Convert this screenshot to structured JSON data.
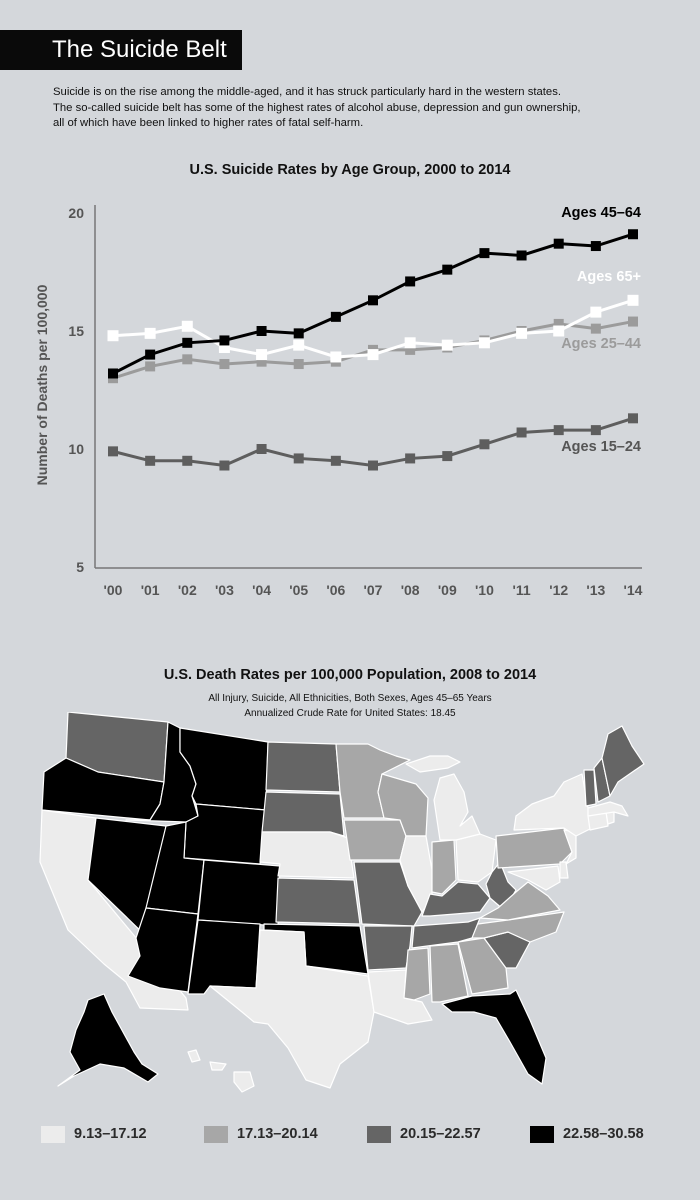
{
  "header": {
    "title": "The Suicide Belt",
    "intro_lines": [
      "Suicide is on the rise among the middle-aged, and it has struck particularly hard in the western states.",
      "The so-called suicide belt has some of the highest rates of alcohol abuse, depression and gun ownership,",
      "all of which have been linked to higher rates of fatal self-harm."
    ]
  },
  "chart_data": [
    {
      "type": "line",
      "title": "U.S. Suicide Rates by Age Group, 2000 to 2014",
      "ylabel": "Number of Deaths per 100,000",
      "xlabel": "",
      "x": [
        "'00",
        "'01",
        "'02",
        "'03",
        "'04",
        "'05",
        "'06",
        "'07",
        "'08",
        "'09",
        "'10",
        "'11",
        "'12",
        "'13",
        "'14"
      ],
      "ylim": [
        5,
        20
      ],
      "yticks": [
        5,
        10,
        15,
        20
      ],
      "grid": false,
      "series": [
        {
          "name": "Ages 45–64",
          "color": "#000000",
          "values": [
            13.2,
            14.0,
            14.5,
            14.6,
            15.0,
            14.9,
            15.6,
            16.3,
            17.1,
            17.6,
            18.3,
            18.2,
            18.7,
            18.6,
            19.1
          ]
        },
        {
          "name": "Ages 65+",
          "color": "#ffffff",
          "values": [
            14.8,
            14.9,
            15.2,
            14.3,
            14.0,
            14.4,
            13.9,
            14.0,
            14.5,
            14.4,
            14.5,
            14.9,
            15.0,
            15.8,
            16.3
          ]
        },
        {
          "name": "Ages 25–44",
          "color": "#9b9b9b",
          "values": [
            13.0,
            13.5,
            13.8,
            13.6,
            13.7,
            13.6,
            13.7,
            14.2,
            14.2,
            14.3,
            14.6,
            15.0,
            15.3,
            15.1,
            15.4
          ]
        },
        {
          "name": "Ages 15–24",
          "color": "#5e5e5e",
          "values": [
            9.9,
            9.5,
            9.5,
            9.3,
            10.0,
            9.6,
            9.5,
            9.3,
            9.6,
            9.7,
            10.2,
            10.7,
            10.8,
            10.8,
            11.3
          ]
        }
      ]
    },
    {
      "type": "heatmap",
      "title": "U.S. Death Rates per 100,000 Population, 2008 to 2014",
      "subtitle_lines": [
        "All Injury, Suicide, All Ethnicities, Both Sexes, Ages 45–65 Years",
        "Annualized Crude Rate for United States: 18.45"
      ],
      "legend": [
        {
          "label": "9.13–17.12",
          "color": "#ececec"
        },
        {
          "label": "17.13–20.14",
          "color": "#a7a7a7"
        },
        {
          "label": "20.15–22.57",
          "color": "#656565"
        },
        {
          "label": "22.58–30.58",
          "color": "#000000"
        }
      ],
      "states": {
        "lightest": [
          "CA",
          "TX",
          "IL",
          "MI",
          "OH",
          "NY",
          "NJ",
          "CT",
          "MA",
          "RI",
          "LA",
          "NE",
          "MD",
          "DE",
          "HI"
        ],
        "light": [
          "MN",
          "WI",
          "IA",
          "IN",
          "PA",
          "VA",
          "NC",
          "MS",
          "AL",
          "GA"
        ],
        "dark": [
          "WA",
          "ND",
          "SD",
          "KS",
          "MO",
          "AR",
          "KY",
          "TN",
          "WV",
          "SC",
          "VT",
          "NH",
          "ME"
        ],
        "darkest": [
          "OR",
          "ID",
          "MT",
          "WY",
          "NV",
          "UT",
          "CO",
          "AZ",
          "NM",
          "OK",
          "FL",
          "AK"
        ]
      }
    }
  ]
}
